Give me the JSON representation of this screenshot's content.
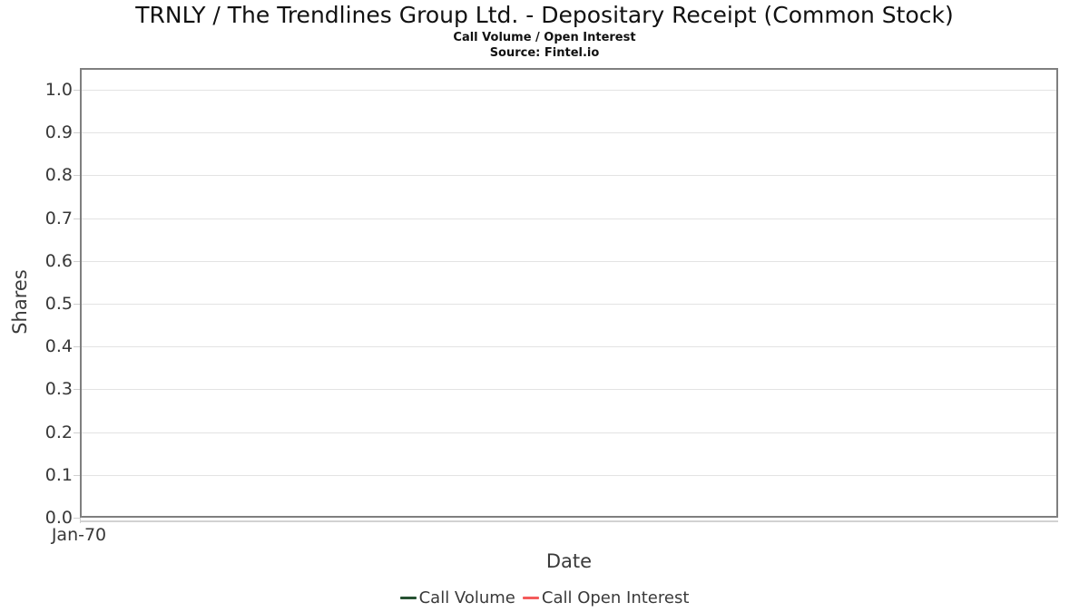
{
  "header": {
    "title": "TRNLY / The Trendlines Group Ltd. - Depositary Receipt (Common Stock)",
    "subtitle": "Call Volume / Open Interest",
    "source": "Source: Fintel.io"
  },
  "chart_data": {
    "type": "line",
    "title": "TRNLY / The Trendlines Group Ltd. - Depositary Receipt (Common Stock)",
    "subtitle": "Call Volume / Open Interest",
    "source": "Source: Fintel.io",
    "xlabel": "Date",
    "ylabel": "Shares",
    "x_tick_labels": [
      "Jan-70"
    ],
    "y_tick_labels": [
      "1.0",
      "0.9",
      "0.8",
      "0.7",
      "0.6",
      "0.5",
      "0.4",
      "0.3",
      "0.2",
      "0.1",
      "0.0"
    ],
    "ylim": [
      0.0,
      1.05
    ],
    "grid": true,
    "grid_axis": "y",
    "legend_position": "bottom",
    "series": [
      {
        "name": "Call Volume",
        "color": "#265232",
        "x": [],
        "values": []
      },
      {
        "name": "Call Open Interest",
        "color": "#f45b5b",
        "x": [],
        "values": []
      }
    ]
  },
  "colors": {
    "plot_border": "#7f7f7f",
    "gridline": "#e3e3e3",
    "tick": "#cfcfcf",
    "axis_text": "#383838",
    "title_text": "#111111",
    "call_volume": "#265232",
    "call_open_interest": "#f45b5b"
  }
}
